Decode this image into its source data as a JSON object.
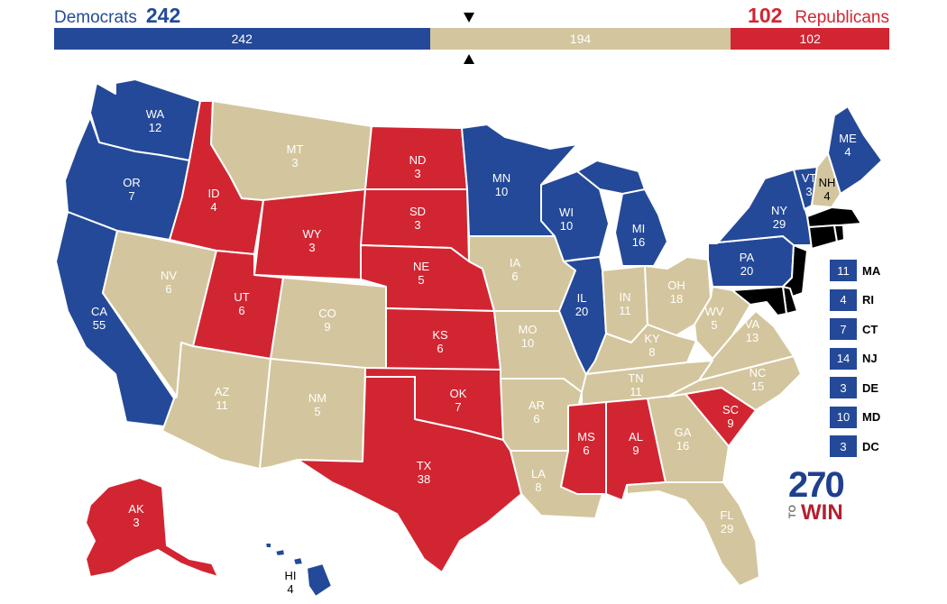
{
  "header": {
    "dem_label": "Democrats",
    "dem_total": "242",
    "rep_total": "102",
    "rep_label": "Republicans"
  },
  "bar": {
    "dem": 242,
    "tossup": 194,
    "rep": 102,
    "dem_label": "242",
    "tossup_label": "194",
    "rep_label": "102"
  },
  "colors": {
    "dem": "#244999",
    "tossup": "#d3c59d",
    "rep": "#d22532"
  },
  "states": {
    "WA": {
      "abbr": "WA",
      "ev": "12",
      "party": "dem"
    },
    "OR": {
      "abbr": "OR",
      "ev": "7",
      "party": "dem"
    },
    "CA": {
      "abbr": "CA",
      "ev": "55",
      "party": "dem"
    },
    "NV": {
      "abbr": "NV",
      "ev": "6",
      "party": "tossup"
    },
    "ID": {
      "abbr": "ID",
      "ev": "4",
      "party": "rep"
    },
    "MT": {
      "abbr": "MT",
      "ev": "3",
      "party": "tossup"
    },
    "WY": {
      "abbr": "WY",
      "ev": "3",
      "party": "rep"
    },
    "UT": {
      "abbr": "UT",
      "ev": "6",
      "party": "rep"
    },
    "AZ": {
      "abbr": "AZ",
      "ev": "11",
      "party": "tossup"
    },
    "CO": {
      "abbr": "CO",
      "ev": "9",
      "party": "tossup"
    },
    "NM": {
      "abbr": "NM",
      "ev": "5",
      "party": "tossup"
    },
    "ND": {
      "abbr": "ND",
      "ev": "3",
      "party": "rep"
    },
    "SD": {
      "abbr": "SD",
      "ev": "3",
      "party": "rep"
    },
    "NE": {
      "abbr": "NE",
      "ev": "5",
      "party": "rep"
    },
    "KS": {
      "abbr": "KS",
      "ev": "6",
      "party": "rep"
    },
    "OK": {
      "abbr": "OK",
      "ev": "7",
      "party": "rep"
    },
    "TX": {
      "abbr": "TX",
      "ev": "38",
      "party": "rep"
    },
    "MN": {
      "abbr": "MN",
      "ev": "10",
      "party": "dem"
    },
    "IA": {
      "abbr": "IA",
      "ev": "6",
      "party": "tossup"
    },
    "MO": {
      "abbr": "MO",
      "ev": "10",
      "party": "tossup"
    },
    "AR": {
      "abbr": "AR",
      "ev": "6",
      "party": "tossup"
    },
    "LA": {
      "abbr": "LA",
      "ev": "8",
      "party": "tossup"
    },
    "WI": {
      "abbr": "WI",
      "ev": "10",
      "party": "dem"
    },
    "IL": {
      "abbr": "IL",
      "ev": "20",
      "party": "dem"
    },
    "MI": {
      "abbr": "MI",
      "ev": "16",
      "party": "dem"
    },
    "IN": {
      "abbr": "IN",
      "ev": "11",
      "party": "tossup"
    },
    "OH": {
      "abbr": "OH",
      "ev": "18",
      "party": "tossup"
    },
    "KY": {
      "abbr": "KY",
      "ev": "8",
      "party": "tossup"
    },
    "TN": {
      "abbr": "TN",
      "ev": "11",
      "party": "tossup"
    },
    "MS": {
      "abbr": "MS",
      "ev": "6",
      "party": "rep"
    },
    "AL": {
      "abbr": "AL",
      "ev": "9",
      "party": "rep"
    },
    "GA": {
      "abbr": "GA",
      "ev": "16",
      "party": "tossup"
    },
    "FL": {
      "abbr": "FL",
      "ev": "29",
      "party": "tossup"
    },
    "SC": {
      "abbr": "SC",
      "ev": "9",
      "party": "rep"
    },
    "NC": {
      "abbr": "NC",
      "ev": "15",
      "party": "tossup"
    },
    "VA": {
      "abbr": "VA",
      "ev": "13",
      "party": "tossup"
    },
    "WV": {
      "abbr": "WV",
      "ev": "5",
      "party": "tossup"
    },
    "PA": {
      "abbr": "PA",
      "ev": "20",
      "party": "dem"
    },
    "NY": {
      "abbr": "NY",
      "ev": "29",
      "party": "dem"
    },
    "VT": {
      "abbr": "VT",
      "ev": "3",
      "party": "dem"
    },
    "NH": {
      "abbr": "NH",
      "ev": "4",
      "party": "tossup"
    },
    "ME": {
      "abbr": "ME",
      "ev": "4",
      "party": "dem"
    },
    "AK": {
      "abbr": "AK",
      "ev": "3",
      "party": "rep"
    },
    "HI": {
      "abbr": "HI",
      "ev": "4",
      "party": "dem"
    }
  },
  "small_states": [
    {
      "abbr": "MA",
      "ev": "11",
      "party": "dem"
    },
    {
      "abbr": "RI",
      "ev": "4",
      "party": "dem"
    },
    {
      "abbr": "CT",
      "ev": "7",
      "party": "dem"
    },
    {
      "abbr": "NJ",
      "ev": "14",
      "party": "dem"
    },
    {
      "abbr": "DE",
      "ev": "3",
      "party": "dem"
    },
    {
      "abbr": "MD",
      "ev": "10",
      "party": "dem"
    },
    {
      "abbr": "DC",
      "ev": "3",
      "party": "dem"
    }
  ],
  "logo": {
    "number": "270",
    "to": "TO",
    "win": "WIN"
  }
}
